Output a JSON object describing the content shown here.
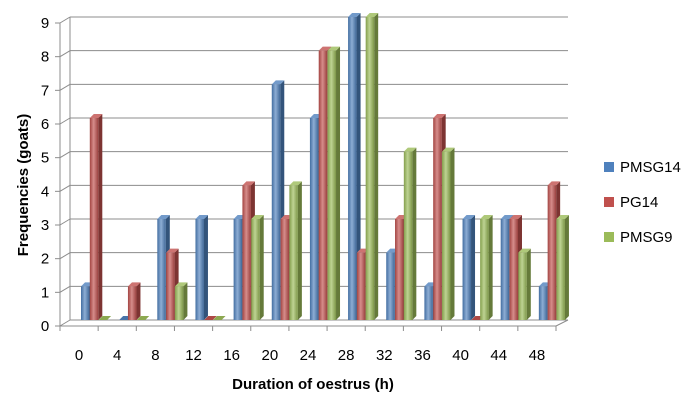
{
  "chart_data": {
    "type": "bar",
    "title": "",
    "xlabel": "Duration of oestrus (h)",
    "ylabel": "Frequencies (goats)",
    "categories": [
      "0",
      "4",
      "8",
      "12",
      "16",
      "20",
      "24",
      "28",
      "32",
      "36",
      "40",
      "44",
      "48"
    ],
    "ylim": [
      0,
      9
    ],
    "yticks": [
      0,
      1,
      2,
      3,
      4,
      5,
      6,
      7,
      8,
      9
    ],
    "grid": true,
    "legend_position": "right",
    "series": [
      {
        "name": "PMSG14",
        "color": "#4F81BD",
        "values": [
          1,
          0,
          3,
          3,
          3,
          7,
          6,
          9,
          2,
          1,
          3,
          3,
          1
        ]
      },
      {
        "name": "PG14",
        "color": "#C0504D",
        "values": [
          6,
          1,
          2,
          0,
          4,
          3,
          8,
          2,
          3,
          6,
          0,
          3,
          4
        ]
      },
      {
        "name": "PMSG9",
        "color": "#9BBB59",
        "values": [
          0,
          0,
          1,
          0,
          3,
          4,
          8,
          9,
          5,
          5,
          3,
          2,
          3
        ]
      }
    ]
  }
}
